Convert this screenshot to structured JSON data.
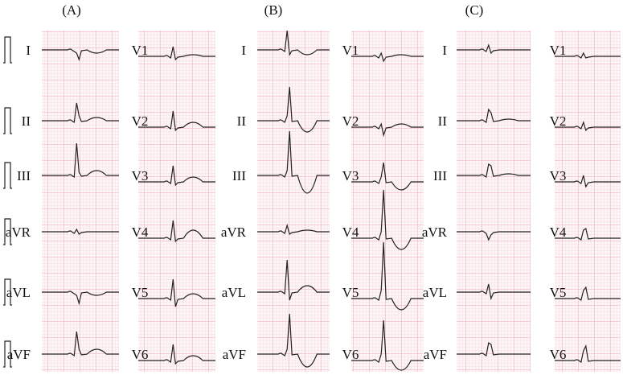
{
  "panels": [
    {
      "label": "(A)",
      "limb_leads": [
        "I",
        "II",
        "III",
        "aVR",
        "aVL",
        "aVF"
      ],
      "precordial_leads": [
        "V1",
        "V2",
        "V3",
        "V4",
        "V5",
        "V6"
      ]
    },
    {
      "label": "(B)",
      "limb_leads": [
        "I",
        "II",
        "III",
        "aVR",
        "aVL",
        "aVF"
      ],
      "precordial_leads": [
        "V1",
        "V2",
        "V3",
        "V4",
        "V5",
        "V6"
      ]
    },
    {
      "label": "(C)",
      "limb_leads": [
        "I",
        "II",
        "III",
        "aVR",
        "aVL",
        "aVF"
      ],
      "precordial_leads": [
        "V1",
        "V2",
        "V3",
        "V4",
        "V5",
        "V6"
      ]
    }
  ]
}
